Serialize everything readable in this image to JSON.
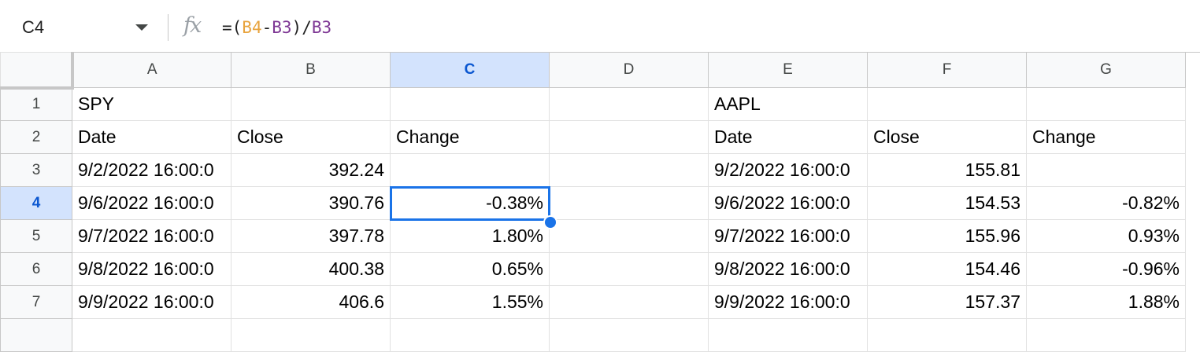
{
  "formula_bar": {
    "cell_ref": "C4",
    "fx_label": "fx",
    "formula_prefix": "=(",
    "formula_ref1": "B4",
    "formula_minus": "-",
    "formula_ref2": "B3",
    "formula_mid": ")/",
    "formula_ref3": "B3"
  },
  "columns": [
    "A",
    "B",
    "C",
    "D",
    "E",
    "F",
    "G"
  ],
  "active_column": "C",
  "active_row": "4",
  "rows": [
    {
      "num": "1",
      "A": "SPY",
      "B": "",
      "C": "",
      "D": "",
      "E": "AAPL",
      "F": "",
      "G": ""
    },
    {
      "num": "2",
      "A": "Date",
      "B": "Close",
      "C": "Change",
      "D": "",
      "E": "Date",
      "F": "Close",
      "G": "Change"
    },
    {
      "num": "3",
      "A": "9/2/2022 16:00:0",
      "B": "392.24",
      "C": "",
      "D": "",
      "E": "9/2/2022 16:00:0",
      "F": "155.81",
      "G": ""
    },
    {
      "num": "4",
      "A": "9/6/2022 16:00:0",
      "B": "390.76",
      "C": "-0.38%",
      "D": "",
      "E": "9/6/2022 16:00:0",
      "F": "154.53",
      "G": "-0.82%"
    },
    {
      "num": "5",
      "A": "9/7/2022 16:00:0",
      "B": "397.78",
      "C": "1.80%",
      "D": "",
      "E": "9/7/2022 16:00:0",
      "F": "155.96",
      "G": "0.93%"
    },
    {
      "num": "6",
      "A": "9/8/2022 16:00:0",
      "B": "400.38",
      "C": "0.65%",
      "D": "",
      "E": "9/8/2022 16:00:0",
      "F": "154.46",
      "G": "-0.96%"
    },
    {
      "num": "7",
      "A": "9/9/2022 16:00:0",
      "B": "406.6",
      "C": "1.55%",
      "D": "",
      "E": "9/9/2022 16:00:0",
      "F": "157.37",
      "G": "1.88%"
    },
    {
      "num": "",
      "A": "",
      "B": "",
      "C": "",
      "D": "",
      "E": "",
      "F": "",
      "G": ""
    }
  ],
  "colors": {
    "selection": "#1a73e8",
    "header_active_bg": "#d3e3fd",
    "ref1_color": "#e8a33d",
    "ref2_color": "#7e3794"
  }
}
